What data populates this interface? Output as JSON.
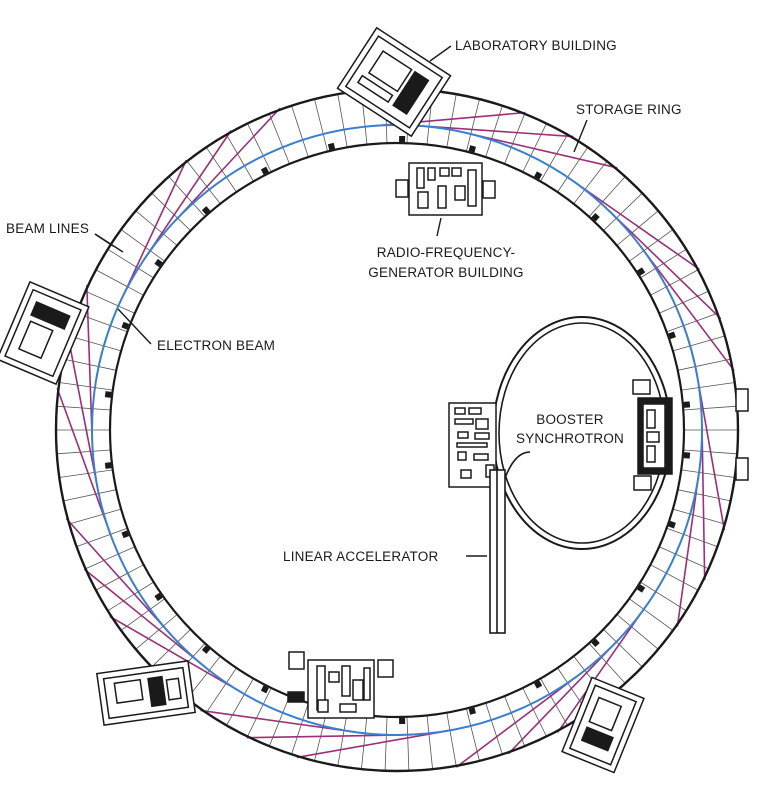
{
  "labels": {
    "laboratory_building": "LABORATORY BUILDING",
    "storage_ring": "STORAGE RING",
    "beam_lines": "BEAM LINES",
    "rf_building_line1": "RADIO-FREQUENCY-",
    "rf_building_line2": "GENERATOR BUILDING",
    "electron_beam": "ELECTRON BEAM",
    "booster_line1": "BOOSTER",
    "booster_line2": "SYNCHROTRON",
    "linear_accelerator": "LINEAR ACCELERATOR"
  },
  "colors": {
    "ink": "#1a1a1a",
    "electron_beam": "#3a7fd0",
    "beam_lines": "#9b2f78"
  }
}
